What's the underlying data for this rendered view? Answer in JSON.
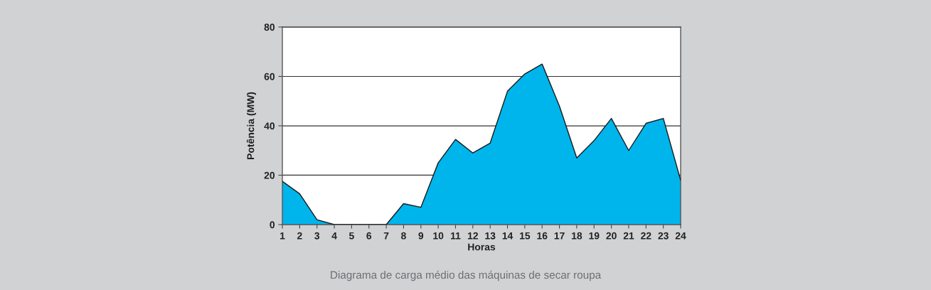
{
  "chart_data": {
    "type": "area",
    "xlabel": "Horas",
    "ylabel": "Potência (MW)",
    "x": [
      1,
      2,
      3,
      4,
      5,
      6,
      7,
      8,
      9,
      10,
      11,
      12,
      13,
      14,
      15,
      16,
      17,
      18,
      19,
      20,
      21,
      22,
      23,
      24
    ],
    "series": [
      {
        "color": "#00b5ec",
        "values": [
          17.5,
          12.5,
          2,
          0,
          0,
          0,
          0,
          8.5,
          7,
          25,
          34.5,
          29,
          33,
          54,
          61,
          65,
          48,
          27,
          34,
          43,
          30,
          41,
          43,
          18
        ]
      }
    ],
    "xlim": [
      1,
      24
    ],
    "xticks": [
      1,
      2,
      3,
      4,
      5,
      6,
      7,
      8,
      9,
      10,
      11,
      12,
      13,
      14,
      15,
      16,
      17,
      18,
      19,
      20,
      21,
      22,
      23,
      24
    ],
    "ylim": [
      0,
      80
    ],
    "yticks": [
      0,
      20,
      40,
      60,
      80
    ],
    "grid": "y",
    "annotations": [
      "Diagrama de carga médio das máquinas de secar roupa"
    ]
  }
}
